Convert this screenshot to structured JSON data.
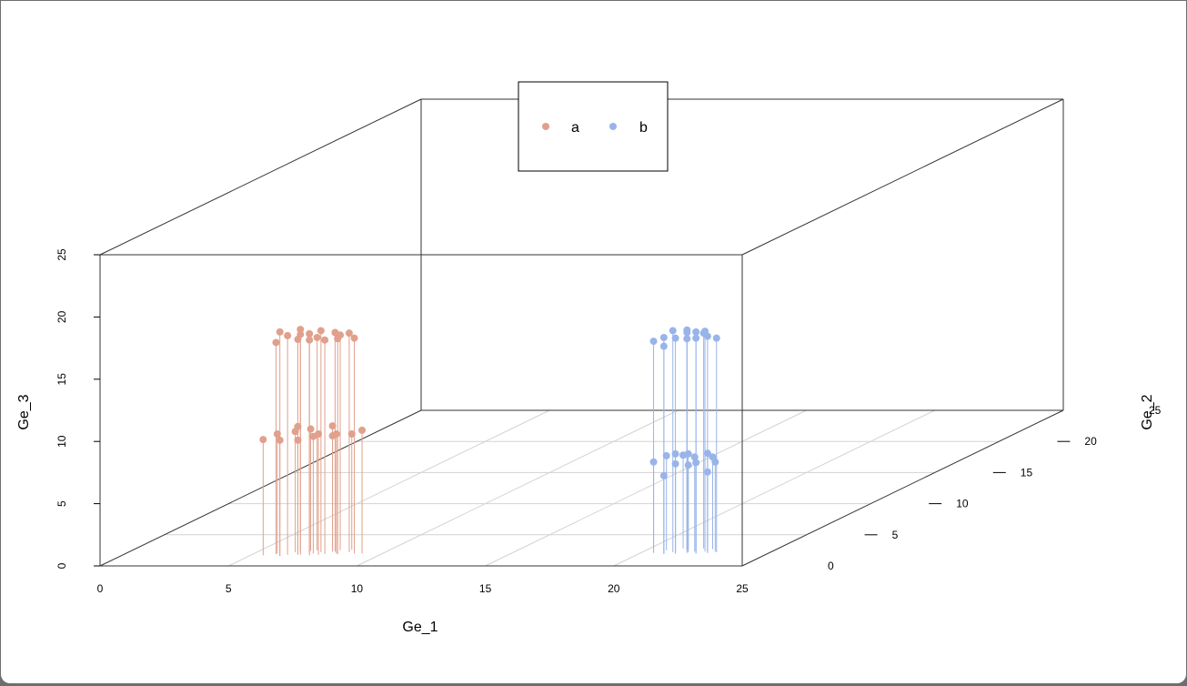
{
  "chart_data": {
    "type": "scatter",
    "subtype": "3d-scatter-with-drop-lines",
    "xlabel": "Ge_1",
    "ylabel": "Ge_2",
    "zlabel": "Ge_3",
    "xlim": [
      0,
      25
    ],
    "ylim": [
      0,
      25
    ],
    "zlim": [
      0,
      25
    ],
    "x_ticks": [
      "0",
      "5",
      "10",
      "15",
      "20",
      "25"
    ],
    "y_ticks": [
      "0",
      "5",
      "10",
      "15",
      "20",
      "25"
    ],
    "z_ticks": [
      "0",
      "5",
      "10",
      "15",
      "20",
      "25"
    ],
    "grid": true,
    "legend_position": "top",
    "legend": [
      {
        "name": "a",
        "color": "#e0a08c"
      },
      {
        "name": "b",
        "color": "#98b4ea"
      }
    ],
    "series": [
      {
        "name": "a",
        "color": "#e0a08c",
        "points": [
          [
            5.9,
            1.9,
            17.0
          ],
          [
            6.2,
            1.6,
            18.0
          ],
          [
            6.4,
            1.8,
            17.6
          ],
          [
            6.7,
            2.0,
            17.2
          ],
          [
            6.9,
            1.8,
            18.1
          ],
          [
            7.1,
            2.1,
            17.6
          ],
          [
            7.3,
            1.7,
            17.3
          ],
          [
            7.5,
            2.2,
            17.8
          ],
          [
            7.8,
            1.9,
            17.2
          ],
          [
            8.0,
            2.3,
            17.6
          ],
          [
            8.3,
            1.9,
            17.3
          ],
          [
            8.6,
            2.2,
            17.6
          ],
          [
            8.9,
            2.0,
            17.3
          ],
          [
            6.6,
            2.4,
            17.4
          ],
          [
            7.2,
            2.5,
            17.1
          ],
          [
            8.1,
            2.5,
            17.3
          ],
          [
            5.5,
            1.7,
            9.3
          ],
          [
            5.9,
            2.0,
            9.6
          ],
          [
            6.2,
            1.6,
            9.3
          ],
          [
            6.5,
            2.2,
            9.7
          ],
          [
            6.8,
            1.8,
            9.2
          ],
          [
            7.0,
            2.4,
            9.8
          ],
          [
            7.3,
            2.0,
            9.4
          ],
          [
            7.6,
            1.8,
            9.7
          ],
          [
            7.9,
            2.3,
            9.3
          ],
          [
            8.2,
            2.0,
            9.6
          ],
          [
            8.5,
            2.6,
            9.3
          ],
          [
            9.2,
            2.0,
            9.9
          ],
          [
            6.4,
            2.6,
            9.9
          ],
          [
            7.7,
            2.7,
            9.9
          ]
        ]
      },
      {
        "name": "b",
        "color": "#98b4ea",
        "points": [
          [
            20.5,
            2.1,
            17.0
          ],
          [
            20.8,
            2.3,
            16.5
          ],
          [
            21.0,
            1.9,
            17.4
          ],
          [
            21.2,
            2.2,
            17.8
          ],
          [
            21.4,
            2.0,
            17.3
          ],
          [
            21.6,
            2.5,
            17.7
          ],
          [
            21.8,
            2.1,
            17.2
          ],
          [
            22.0,
            2.4,
            17.6
          ],
          [
            22.2,
            2.0,
            17.3
          ],
          [
            22.4,
            2.3,
            17.7
          ],
          [
            22.6,
            2.1,
            17.4
          ],
          [
            22.9,
            2.2,
            17.2
          ],
          [
            21.5,
            2.7,
            17.4
          ],
          [
            22.1,
            2.8,
            17.3
          ],
          [
            20.5,
            2.1,
            7.3
          ],
          [
            20.8,
            2.5,
            7.6
          ],
          [
            21.0,
            1.9,
            6.3
          ],
          [
            21.2,
            2.4,
            7.8
          ],
          [
            21.4,
            2.0,
            7.2
          ],
          [
            21.6,
            2.6,
            7.7
          ],
          [
            21.8,
            2.2,
            7.0
          ],
          [
            22.0,
            2.3,
            7.6
          ],
          [
            22.2,
            2.0,
            7.3
          ],
          [
            22.4,
            2.5,
            7.8
          ],
          [
            22.6,
            2.1,
            6.5
          ],
          [
            22.8,
            2.3,
            7.2
          ],
          [
            21.3,
            2.8,
            7.5
          ],
          [
            22.5,
            2.7,
            7.4
          ]
        ]
      }
    ]
  }
}
